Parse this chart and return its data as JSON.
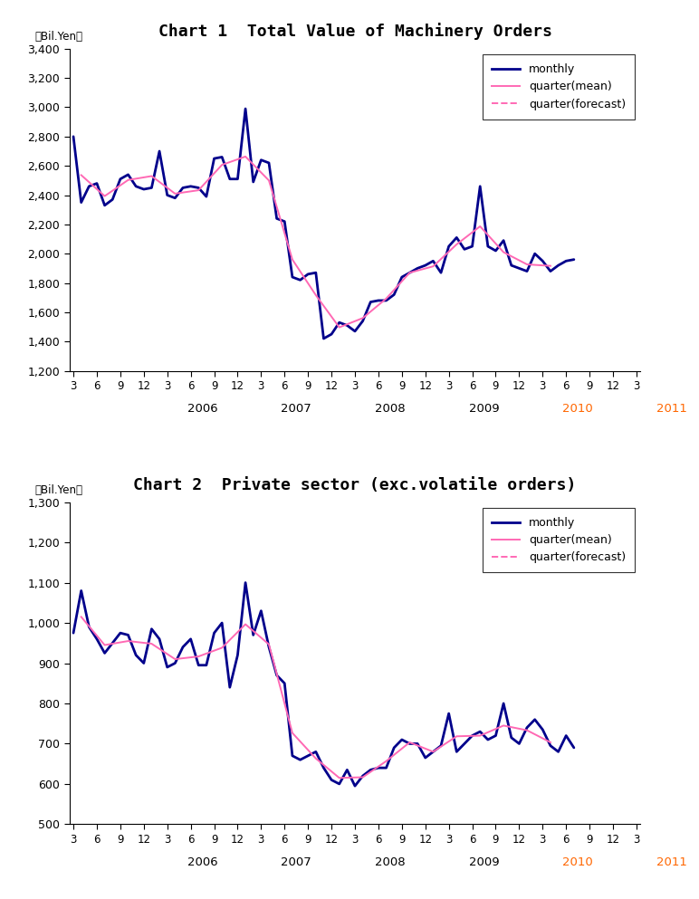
{
  "chart1_title": "Chart 1  Total Value of Machinery Orders",
  "chart2_title": "Chart 2  Private sector (exc.volatile orders)",
  "chart1_ylim": [
    1200,
    3400
  ],
  "chart1_yticks": [
    1200,
    1400,
    1600,
    1800,
    2000,
    2200,
    2400,
    2600,
    2800,
    3000,
    3200,
    3400
  ],
  "chart2_ylim": [
    500,
    1300
  ],
  "chart2_yticks": [
    500,
    600,
    700,
    800,
    900,
    1000,
    1100,
    1200,
    1300
  ],
  "monthly_color": "#00008B",
  "quarter_color1": "#FF69B4",
  "quarter_color2": "#FF69B4",
  "monthly_lw": 2.0,
  "quarter_lw": 1.4,
  "chart1_monthly": [
    2800,
    2350,
    2460,
    2480,
    2330,
    2370,
    2510,
    2540,
    2460,
    2440,
    2450,
    2700,
    2400,
    2380,
    2450,
    2460,
    2450,
    2390,
    2650,
    2660,
    2510,
    2510,
    2990,
    2490,
    2640,
    2620,
    2240,
    2220,
    1840,
    1820,
    1860,
    1870,
    1420,
    1450,
    1530,
    1510,
    1470,
    1540,
    1670,
    1680,
    1680,
    1720,
    1840,
    1870,
    1900,
    1920,
    1950,
    1870,
    2050,
    2110,
    2030,
    2050,
    2460,
    2050,
    2020,
    2090,
    1920,
    1900,
    1880,
    2000,
    1950,
    1880,
    1920,
    1950,
    1960
  ],
  "chart2_monthly": [
    975,
    1080,
    990,
    960,
    925,
    950,
    975,
    970,
    920,
    900,
    985,
    960,
    890,
    900,
    940,
    960,
    895,
    895,
    975,
    1000,
    840,
    920,
    1100,
    970,
    1030,
    940,
    870,
    850,
    670,
    660,
    670,
    680,
    640,
    610,
    600,
    635,
    595,
    620,
    635,
    640,
    640,
    690,
    710,
    700,
    700,
    665,
    680,
    695,
    775,
    680,
    700,
    720,
    730,
    710,
    720,
    800,
    715,
    700,
    740,
    760,
    735,
    695,
    680,
    720,
    690
  ],
  "year_labels": [
    "2006",
    "2007",
    "2008",
    "2009",
    "2010",
    "2011"
  ],
  "year_colors": [
    "black",
    "black",
    "black",
    "black",
    "#FF6600",
    "#FF6600"
  ]
}
